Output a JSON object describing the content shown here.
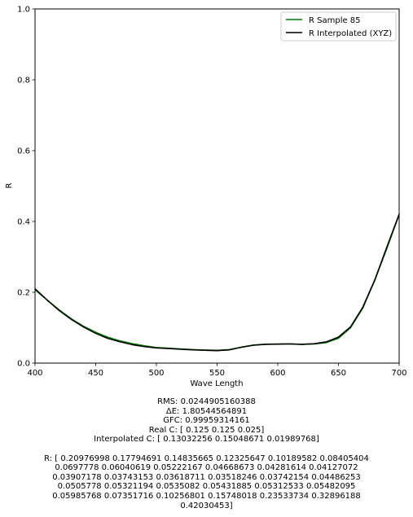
{
  "chart_data": {
    "type": "line",
    "xlabel": "Wave Length",
    "ylabel": "R",
    "xlim": [
      400,
      700
    ],
    "ylim": [
      0,
      1
    ],
    "xticks": [
      "400",
      "450",
      "500",
      "550",
      "600",
      "650",
      "700"
    ],
    "yticks": [
      "0.0",
      "0.2",
      "0.4",
      "0.6",
      "0.8",
      "1.0"
    ],
    "grid": false,
    "legend_placement": "top-right",
    "x": [
      400,
      410,
      420,
      430,
      440,
      450,
      460,
      470,
      480,
      490,
      500,
      510,
      520,
      530,
      540,
      550,
      560,
      570,
      580,
      590,
      600,
      610,
      620,
      630,
      640,
      650,
      660,
      670,
      680,
      690,
      700
    ],
    "series": [
      {
        "name": "R Sample 85",
        "color": "#008000",
        "values": [
          0.207,
          0.178,
          0.15,
          0.125,
          0.104,
          0.087,
          0.073,
          0.063,
          0.055,
          0.049,
          0.044,
          0.042,
          0.04,
          0.038,
          0.037,
          0.036,
          0.038,
          0.045,
          0.051,
          0.053,
          0.054,
          0.054,
          0.053,
          0.054,
          0.058,
          0.07,
          0.1,
          0.155,
          0.235,
          0.325,
          0.42
        ]
      },
      {
        "name": "R Interpolated (XYZ)",
        "color": "#000000",
        "values": [
          0.20976998,
          0.17794691,
          0.14835665,
          0.12325647,
          0.10189582,
          0.08405404,
          0.0697778,
          0.06040619,
          0.05222167,
          0.04668673,
          0.04281614,
          0.04127072,
          0.03907178,
          0.03743153,
          0.03618711,
          0.03518246,
          0.03742154,
          0.04486253,
          0.0505778,
          0.05321194,
          0.0535082,
          0.05431885,
          0.05312533,
          0.05482095,
          0.05985768,
          0.07351716,
          0.10256801,
          0.15748018,
          0.23533734,
          0.32896188,
          0.42030453
        ]
      }
    ]
  },
  "stats": {
    "rms": "RMS: 0.0244905160388",
    "delta_e": "ΔE: 1.80544564891",
    "gfc": "GFC: 0.99959314161",
    "real_c": "Real C: [ 0.125  0.125  0.025]",
    "interpolated_c": "Interpolated C: [ 0.13032256  0.15048671  0.01989768]",
    "r_lines": [
      "R: [ 0.20976998  0.17794691  0.14835665  0.12325647  0.10189582  0.08405404",
      "0.0697778   0.06040619  0.05222167  0.04668673  0.04281614  0.04127072",
      "0.03907178  0.03743153  0.03618711  0.03518246  0.03742154  0.04486253",
      "0.0505778   0.05321194  0.0535082   0.05431885  0.05312533  0.05482095",
      "0.05985768  0.07351716  0.10256801  0.15748018  0.23533734  0.32896188",
      "0.42030453]"
    ]
  }
}
